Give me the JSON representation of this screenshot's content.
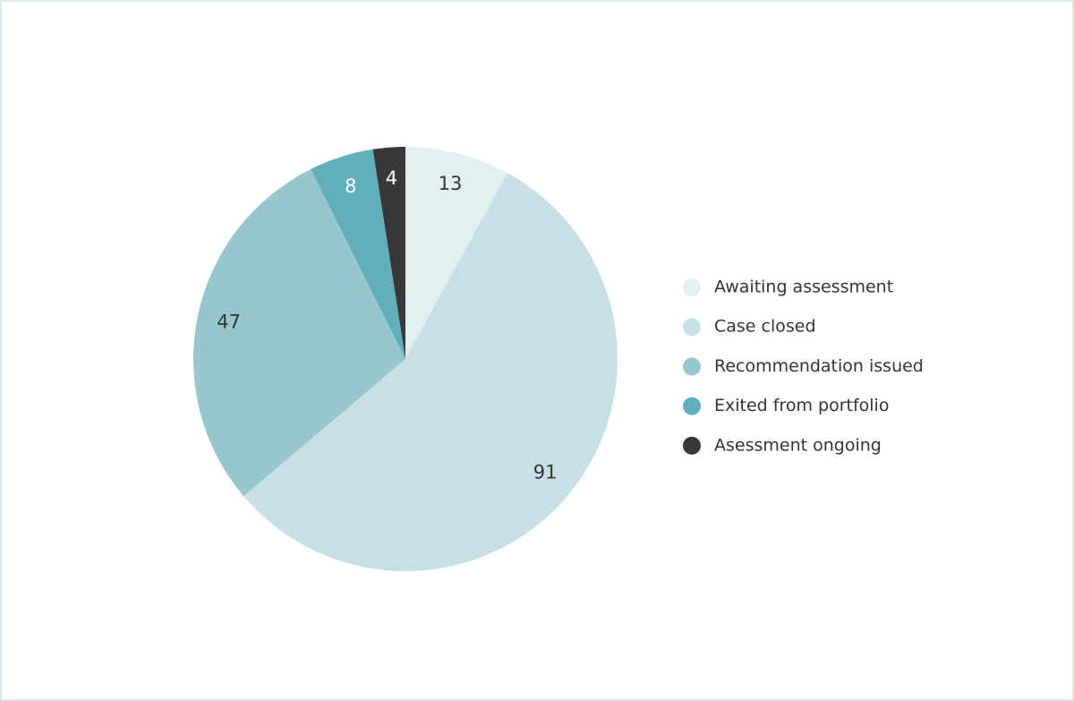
{
  "chart_data": {
    "type": "pie",
    "categories": [
      "Awaiting assessment",
      "Case closed",
      "Recommendation issued",
      "Exited from portfolio",
      "Asessment ongoing"
    ],
    "values": [
      13,
      91,
      47,
      8,
      4
    ],
    "colors": [
      "#e1eff1",
      "#c8e0e5",
      "#97c6cd",
      "#5fb0bc",
      "#383838"
    ],
    "legend": "right"
  }
}
